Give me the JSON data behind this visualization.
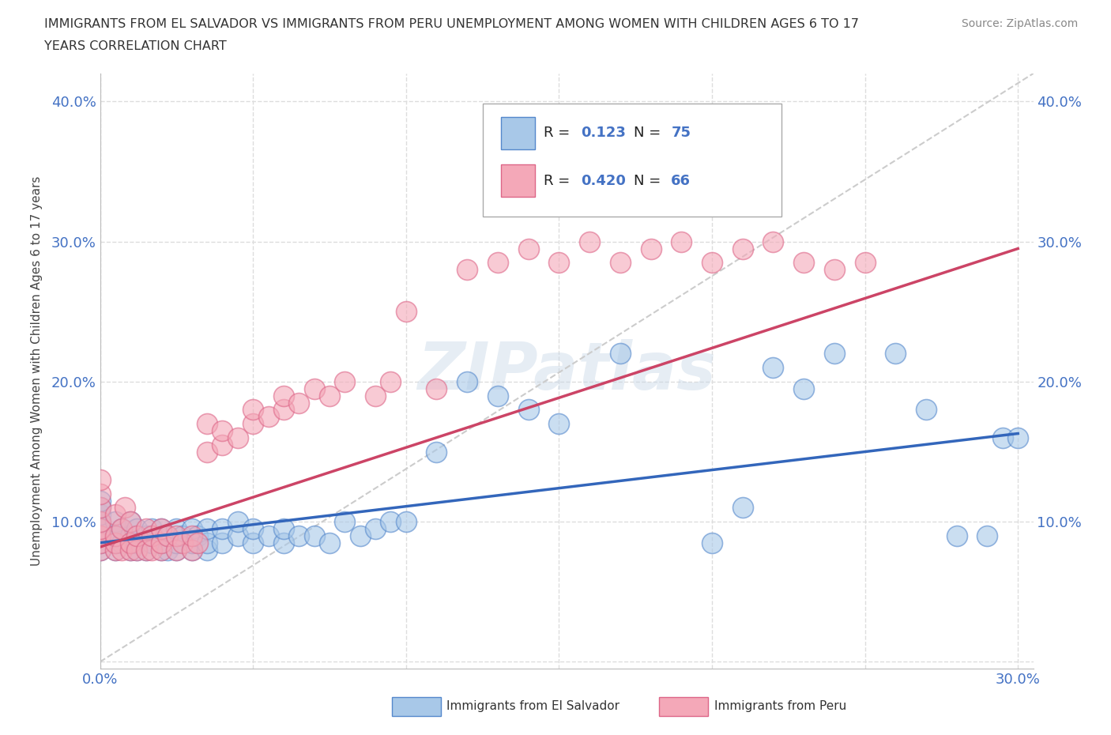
{
  "title_line1": "IMMIGRANTS FROM EL SALVADOR VS IMMIGRANTS FROM PERU UNEMPLOYMENT AMONG WOMEN WITH CHILDREN AGES 6 TO 17",
  "title_line2": "YEARS CORRELATION CHART",
  "source": "Source: ZipAtlas.com",
  "ylabel": "Unemployment Among Women with Children Ages 6 to 17 years",
  "xlim": [
    0.0,
    0.305
  ],
  "ylim": [
    -0.005,
    0.42
  ],
  "xticks": [
    0.0,
    0.05,
    0.1,
    0.15,
    0.2,
    0.25,
    0.3
  ],
  "yticks": [
    0.0,
    0.1,
    0.2,
    0.3,
    0.4
  ],
  "color_salvador": "#a8c8e8",
  "color_peru": "#f4a8b8",
  "edge_salvador": "#5588cc",
  "edge_peru": "#dd6688",
  "color_line_salvador": "#3366bb",
  "color_line_peru": "#cc4466",
  "R_salvador": 0.123,
  "N_salvador": 75,
  "R_peru": 0.42,
  "N_peru": 66,
  "watermark": "ZIPatlas",
  "background_color": "#ffffff",
  "grid_color": "#dddddd",
  "salvador_x": [
    0.0,
    0.0,
    0.0,
    0.0,
    0.0,
    0.0,
    0.0,
    0.0,
    0.005,
    0.005,
    0.005,
    0.005,
    0.007,
    0.007,
    0.01,
    0.01,
    0.01,
    0.01,
    0.012,
    0.012,
    0.012,
    0.015,
    0.015,
    0.017,
    0.017,
    0.02,
    0.02,
    0.02,
    0.022,
    0.022,
    0.025,
    0.025,
    0.025,
    0.027,
    0.03,
    0.03,
    0.03,
    0.032,
    0.035,
    0.035,
    0.035,
    0.04,
    0.04,
    0.045,
    0.045,
    0.05,
    0.05,
    0.055,
    0.06,
    0.06,
    0.065,
    0.07,
    0.075,
    0.08,
    0.085,
    0.09,
    0.095,
    0.1,
    0.11,
    0.12,
    0.13,
    0.14,
    0.15,
    0.17,
    0.2,
    0.21,
    0.22,
    0.23,
    0.24,
    0.26,
    0.27,
    0.28,
    0.29,
    0.295,
    0.3
  ],
  "salvador_y": [
    0.08,
    0.085,
    0.09,
    0.095,
    0.1,
    0.105,
    0.11,
    0.115,
    0.08,
    0.085,
    0.09,
    0.1,
    0.085,
    0.095,
    0.08,
    0.085,
    0.09,
    0.1,
    0.08,
    0.085,
    0.095,
    0.08,
    0.09,
    0.085,
    0.095,
    0.08,
    0.085,
    0.095,
    0.08,
    0.09,
    0.08,
    0.085,
    0.095,
    0.09,
    0.08,
    0.085,
    0.095,
    0.09,
    0.08,
    0.085,
    0.095,
    0.085,
    0.095,
    0.09,
    0.1,
    0.085,
    0.095,
    0.09,
    0.085,
    0.095,
    0.09,
    0.09,
    0.085,
    0.1,
    0.09,
    0.095,
    0.1,
    0.1,
    0.15,
    0.2,
    0.19,
    0.18,
    0.17,
    0.22,
    0.085,
    0.11,
    0.21,
    0.195,
    0.22,
    0.22,
    0.18,
    0.09,
    0.09,
    0.16,
    0.16
  ],
  "peru_x": [
    0.0,
    0.0,
    0.0,
    0.0,
    0.0,
    0.0,
    0.0,
    0.0,
    0.005,
    0.005,
    0.005,
    0.005,
    0.007,
    0.007,
    0.008,
    0.01,
    0.01,
    0.01,
    0.012,
    0.012,
    0.015,
    0.015,
    0.017,
    0.017,
    0.02,
    0.02,
    0.02,
    0.022,
    0.025,
    0.025,
    0.027,
    0.03,
    0.03,
    0.032,
    0.035,
    0.035,
    0.04,
    0.04,
    0.045,
    0.05,
    0.05,
    0.055,
    0.06,
    0.06,
    0.065,
    0.07,
    0.075,
    0.08,
    0.09,
    0.095,
    0.1,
    0.11,
    0.12,
    0.13,
    0.14,
    0.15,
    0.16,
    0.17,
    0.18,
    0.19,
    0.2,
    0.21,
    0.22,
    0.23,
    0.24,
    0.25
  ],
  "peru_y": [
    0.08,
    0.085,
    0.09,
    0.095,
    0.1,
    0.11,
    0.12,
    0.13,
    0.08,
    0.085,
    0.09,
    0.105,
    0.08,
    0.095,
    0.11,
    0.08,
    0.085,
    0.1,
    0.08,
    0.09,
    0.08,
    0.095,
    0.08,
    0.09,
    0.08,
    0.085,
    0.095,
    0.09,
    0.08,
    0.09,
    0.085,
    0.08,
    0.09,
    0.085,
    0.15,
    0.17,
    0.155,
    0.165,
    0.16,
    0.17,
    0.18,
    0.175,
    0.18,
    0.19,
    0.185,
    0.195,
    0.19,
    0.2,
    0.19,
    0.2,
    0.25,
    0.195,
    0.28,
    0.285,
    0.295,
    0.285,
    0.3,
    0.285,
    0.295,
    0.3,
    0.285,
    0.295,
    0.3,
    0.285,
    0.28,
    0.285
  ],
  "ref_line": [
    [
      0.0,
      0.305
    ],
    [
      0.0,
      0.42
    ]
  ],
  "trend_salvador": [
    0.085,
    0.163
  ],
  "trend_peru": [
    0.082,
    0.295
  ]
}
